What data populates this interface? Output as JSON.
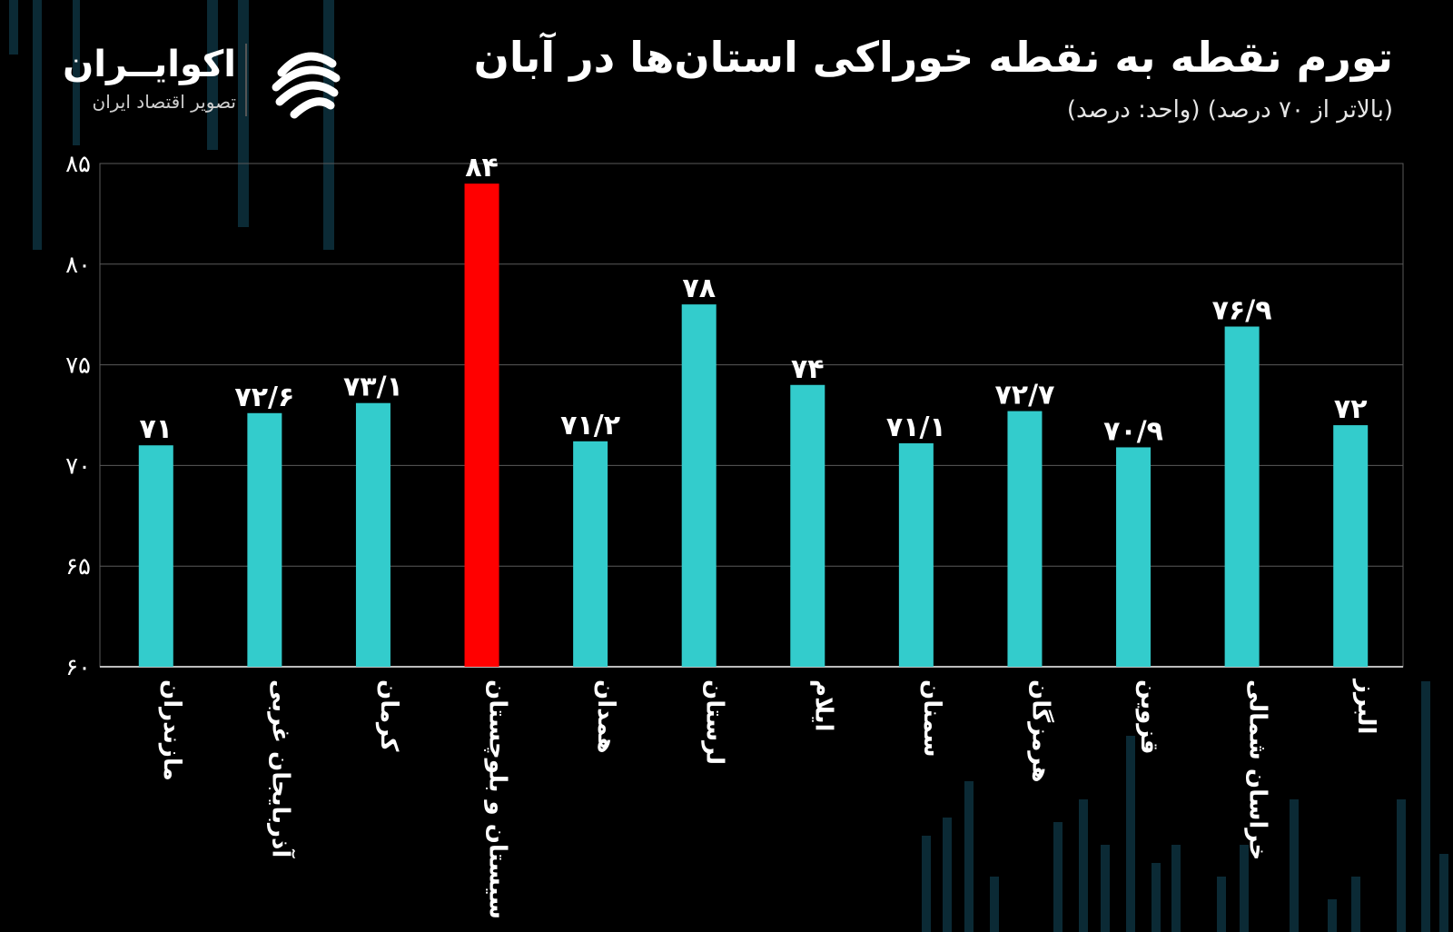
{
  "header": {
    "title": "تورم نقطه به نقطه خوراکی استان‌ها در آبان",
    "subtitle": "(بالاتر از ۷۰ درصد) (واحد: درصد)"
  },
  "brand": {
    "name": "اکوایــران",
    "tagline": "تصویر اقتصاد ایران"
  },
  "colors": {
    "bar": "#33cccc",
    "highlight": "#ff0000",
    "background": "#000000"
  },
  "chart_data": {
    "type": "bar",
    "title": "تورم نقطه به نقطه خوراکی استان‌ها در آبان",
    "subtitle": "(بالاتر از ۷۰ درصد) (واحد: درصد)",
    "categories": [
      "مازندران",
      "آذربایجان غربی",
      "کرمان",
      "سیستان و بلوچستان",
      "همدان",
      "لرستان",
      "ایلام",
      "سمنان",
      "هرمزگان",
      "قزوین",
      "خراسان شمالی",
      "البرز"
    ],
    "values": [
      71,
      72.6,
      73.1,
      84,
      71.2,
      78,
      74,
      71.1,
      72.7,
      70.9,
      76.9,
      72
    ],
    "value_labels": [
      "۷۱",
      "۷۲/۶",
      "۷۳/۱",
      "۸۴",
      "۷۱/۲",
      "۷۸",
      "۷۴",
      "۷۱/۱",
      "۷۲/۷",
      "۷۰/۹",
      "۷۶/۹",
      "۷۲"
    ],
    "highlight_index": 3,
    "ylim": [
      60,
      85
    ],
    "yticks": [
      60,
      65,
      70,
      75,
      80,
      85
    ],
    "ytick_labels": [
      "۶۰",
      "۶۵",
      "۷۰",
      "۷۵",
      "۸۰",
      "۸۵"
    ],
    "grid": true,
    "xlabel": "",
    "ylabel": ""
  }
}
